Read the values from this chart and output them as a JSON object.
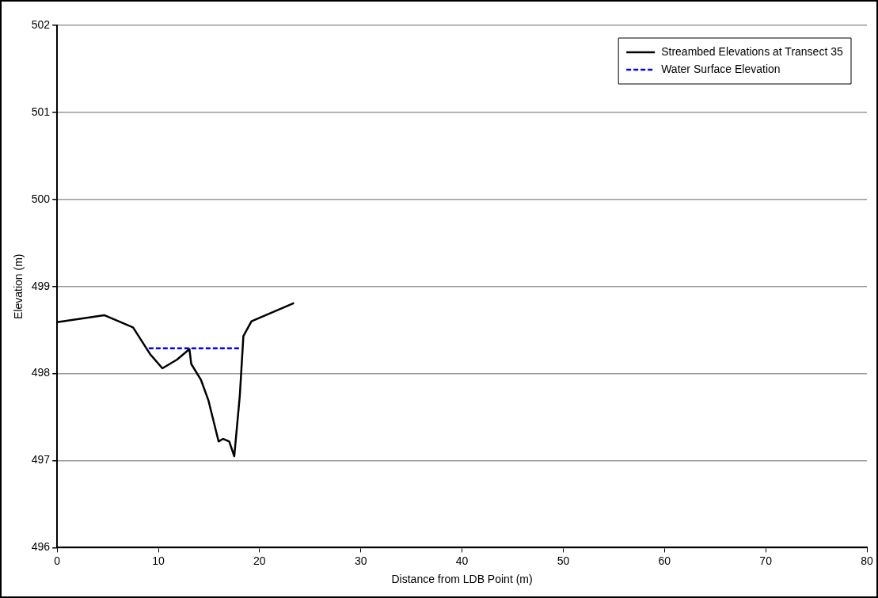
{
  "chart_data": {
    "type": "line",
    "xlabel": "Distance from LDB Point (m)",
    "ylabel": "Elevation (m)",
    "xlim": [
      0,
      80
    ],
    "xticks": [
      0,
      10,
      20,
      30,
      40,
      50,
      60,
      70,
      80
    ],
    "ylim": [
      496,
      502
    ],
    "yticks": [
      496,
      497,
      498,
      499,
      500,
      501,
      502
    ],
    "grid": "y",
    "legend": "top right",
    "marker": "none",
    "series": [
      {
        "name": "Streambed Elevations at Transect 35",
        "color": "#000000",
        "line_style": "solid",
        "x": [
          0,
          4.65,
          7.5,
          9.2,
          10.4,
          11.85,
          13.07,
          13.25,
          14.2,
          14.95,
          15.95,
          16.4,
          17.0,
          17.5,
          18.05,
          18.4,
          19.2,
          23.4
        ],
        "values": [
          498.59,
          498.67,
          498.53,
          498.22,
          498.06,
          498.16,
          498.28,
          498.11,
          497.93,
          497.69,
          497.22,
          497.25,
          497.22,
          497.05,
          497.75,
          498.43,
          498.6,
          498.81
        ]
      },
      {
        "name": "Water Surface Elevation",
        "color": "#0000ff",
        "line_style": "dashed",
        "x": [
          9.05,
          18.1
        ],
        "values": [
          498.29,
          498.29
        ]
      }
    ]
  }
}
